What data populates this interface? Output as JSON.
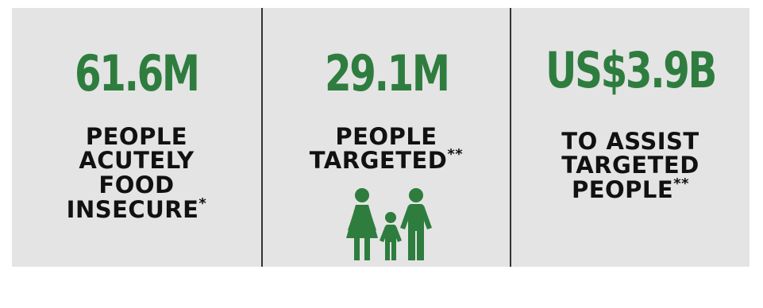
{
  "colors": {
    "accent": "#2e7d3f",
    "text": "#111111",
    "panel": "#e4e4e4",
    "divider": "#333333"
  },
  "stats": [
    {
      "value": "61.6M",
      "label": "PEOPLE\nACUTELY\nFOOD\nINSECURE",
      "mark": "*"
    },
    {
      "value": "29.1M",
      "label": "PEOPLE\nTARGETED",
      "mark": "**",
      "icon": "family-icon"
    },
    {
      "value": "US$3.9B",
      "label": "TO ASSIST\nTARGETED\nPEOPLE",
      "mark": "**"
    }
  ]
}
